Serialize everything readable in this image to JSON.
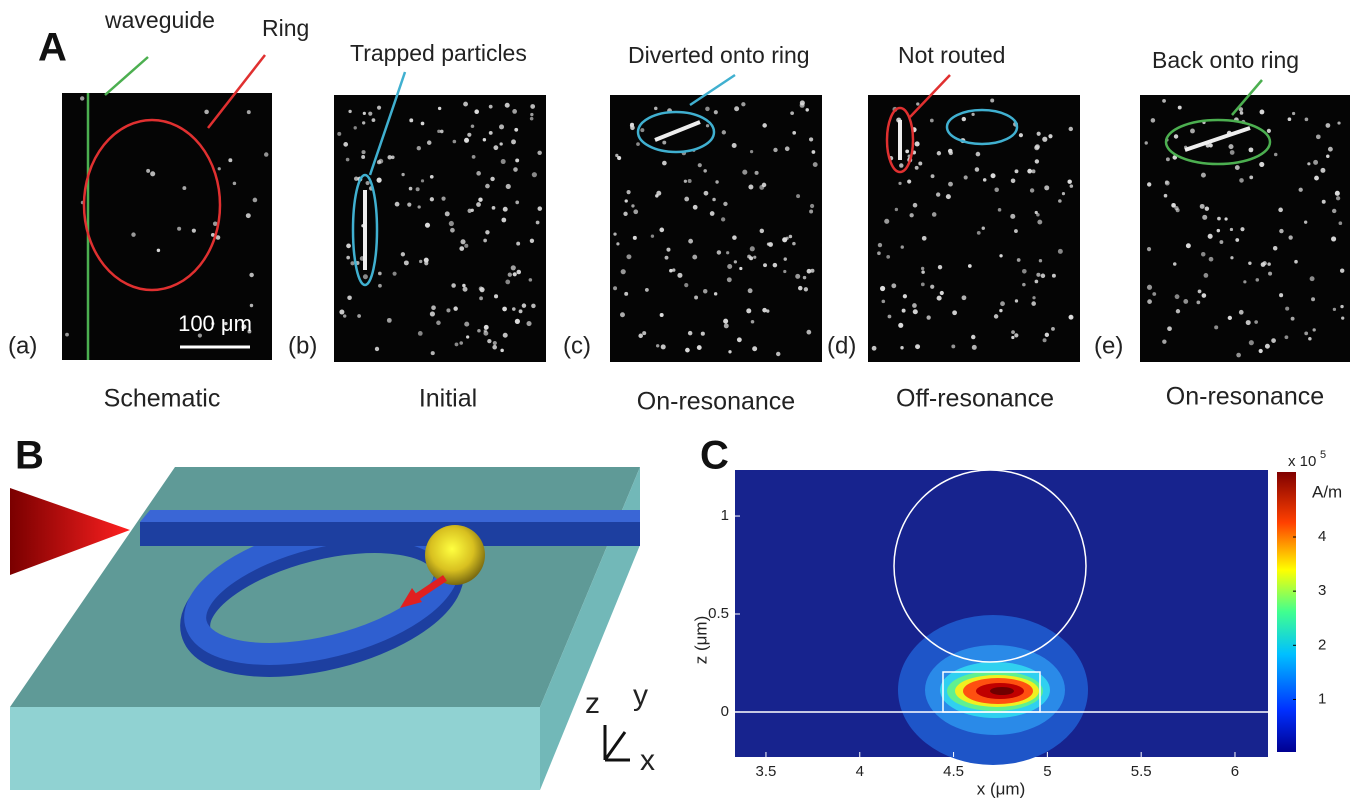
{
  "panel_a": {
    "label": "A",
    "annotations": {
      "waveguide": "waveguide",
      "ring": "Ring",
      "trapped": "Trapped particles",
      "diverted": "Diverted onto ring",
      "not_routed": "Not routed",
      "back": "Back onto ring"
    },
    "scale_bar": "100 μm",
    "subpanels": [
      {
        "letter": "(a)",
        "caption": "Schematic"
      },
      {
        "letter": "(b)",
        "caption": "Initial"
      },
      {
        "letter": "(c)",
        "caption": "On-resonance"
      },
      {
        "letter": "(d)",
        "caption": "Off-resonance"
      },
      {
        "letter": "(e)",
        "caption": "On-resonance"
      }
    ]
  },
  "panel_b": {
    "label": "B",
    "axes": [
      "z",
      "y",
      "x"
    ]
  },
  "panel_c": {
    "label": "C",
    "x_label": "x (μm)",
    "y_label": "z (μm)",
    "xlim": [
      3.335,
      6.176
    ],
    "xticks": [
      3.5,
      4,
      4.5,
      5,
      5.5,
      6
    ],
    "ylim": [
      -0.23,
      1.235
    ],
    "yticks": [
      0,
      0.5,
      1
    ],
    "colorbar": {
      "multiplier": "x 10",
      "exponent": "5",
      "unit": "A/m",
      "lim": [
        0.03,
        5.2
      ],
      "ticks": [
        1,
        2,
        3,
        4
      ]
    }
  }
}
